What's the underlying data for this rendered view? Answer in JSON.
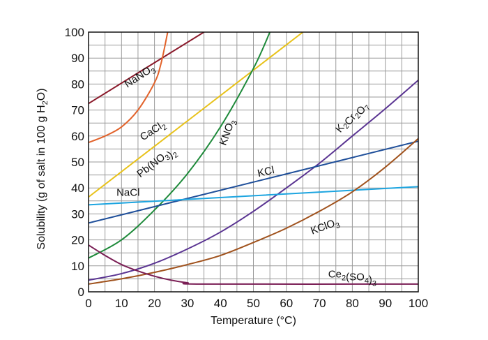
{
  "chart_data": {
    "type": "line",
    "xlabel": "Temperature (°C)",
    "ylabel": "Solubility (g of salt in 100 g H₂O)",
    "xlim": [
      0,
      100
    ],
    "ylim": [
      0,
      100
    ],
    "x_ticks": [
      0,
      10,
      20,
      30,
      40,
      50,
      60,
      70,
      80,
      90,
      100
    ],
    "y_ticks": [
      0,
      10,
      20,
      30,
      40,
      50,
      60,
      70,
      80,
      90,
      100
    ],
    "grid": true,
    "series": [
      {
        "name": "NaNO₃",
        "color": "#8b1a2b",
        "points": [
          [
            0,
            72.5
          ],
          [
            35,
            100
          ]
        ]
      },
      {
        "name": "CaCl₂",
        "color": "#e2622a",
        "points": [
          [
            0,
            57.5
          ],
          [
            5,
            60
          ],
          [
            10,
            63.5
          ],
          [
            15,
            70
          ],
          [
            20,
            80.5
          ],
          [
            22,
            88
          ],
          [
            24,
            100
          ]
        ]
      },
      {
        "name": "Pb(NO₃)₂",
        "color": "#e8c21a",
        "points": [
          [
            0,
            36.5
          ],
          [
            65,
            100
          ]
        ]
      },
      {
        "name": "KNO₃",
        "color": "#1e8a3a",
        "points": [
          [
            0,
            13
          ],
          [
            10,
            20
          ],
          [
            20,
            31.5
          ],
          [
            30,
            45.5
          ],
          [
            40,
            63.5
          ],
          [
            50,
            86
          ],
          [
            55,
            100
          ]
        ]
      },
      {
        "name": "K₂Cr₂O₇",
        "color": "#5a3492",
        "points": [
          [
            0,
            4.5
          ],
          [
            10,
            7
          ],
          [
            20,
            11
          ],
          [
            30,
            16.5
          ],
          [
            40,
            23
          ],
          [
            50,
            31
          ],
          [
            60,
            40
          ],
          [
            70,
            49.5
          ],
          [
            80,
            60
          ],
          [
            90,
            70.5
          ],
          [
            100,
            81.5
          ]
        ]
      },
      {
        "name": "KCl",
        "color": "#1f4f9a",
        "points": [
          [
            0,
            26.5
          ],
          [
            100,
            58
          ]
        ]
      },
      {
        "name": "NaCl",
        "color": "#1da5e0",
        "points": [
          [
            0,
            33.5
          ],
          [
            100,
            40.5
          ]
        ]
      },
      {
        "name": "KClO₃",
        "color": "#a0521d",
        "points": [
          [
            0,
            3
          ],
          [
            10,
            5
          ],
          [
            20,
            7.5
          ],
          [
            30,
            10.5
          ],
          [
            40,
            14
          ],
          [
            50,
            19
          ],
          [
            60,
            24.5
          ],
          [
            70,
            31
          ],
          [
            80,
            38.5
          ],
          [
            90,
            48
          ],
          [
            100,
            59
          ]
        ]
      },
      {
        "name": "Ce₂(SO₄)₃",
        "color": "#7a1e55",
        "points": [
          [
            0,
            18
          ],
          [
            5,
            14
          ],
          [
            10,
            10.5
          ],
          [
            15,
            8
          ],
          [
            20,
            6
          ],
          [
            25,
            4.5
          ],
          [
            30,
            3.5
          ],
          [
            35,
            3
          ],
          [
            100,
            3
          ]
        ]
      }
    ]
  }
}
